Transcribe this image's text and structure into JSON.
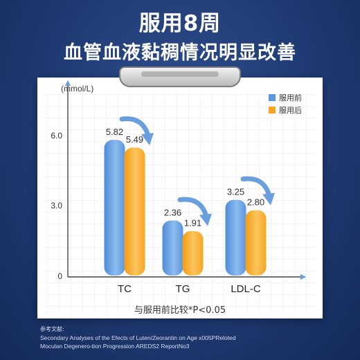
{
  "header": {
    "title": "服用8周",
    "subtitle": "血管血液黏稠情况明显改善"
  },
  "chart_data": {
    "type": "bar",
    "unit_label": "(mmol/L)",
    "categories": [
      "TC",
      "TG",
      "LDL-C"
    ],
    "series": [
      {
        "name": "服用前",
        "values": [
          5.82,
          2.36,
          3.25
        ],
        "labels": [
          "5.82",
          "2.36",
          "3.25"
        ]
      },
      {
        "name": "服用后",
        "values": [
          5.49,
          1.91,
          2.8
        ],
        "labels": [
          "5.49",
          "1.91",
          "2.80"
        ]
      }
    ],
    "yticks": [
      {
        "value": 0,
        "label": "0"
      },
      {
        "value": 3.0,
        "label": "3.0"
      },
      {
        "value": 6.0,
        "label": "6.0"
      }
    ],
    "ylim": [
      0,
      7.5
    ],
    "legend_position": "top-right",
    "xlabel": "与服用前比较*P<0.05",
    "grid": true,
    "colors": {
      "before": "#5b97dc",
      "before_light": "#8cbcf0",
      "after": "#f6a623",
      "after_light": "#fbc55d",
      "arrow": "#6a9fdd",
      "grid": "#dfe6ee"
    }
  },
  "references": {
    "title": "参考文献:",
    "lines": [
      "Secondary Analyses of the Efects of Luten/Zeorantin on Age x005PReloted",
      "Moculan Degenero-tion Progression AREDS2 ReportNo3"
    ]
  }
}
